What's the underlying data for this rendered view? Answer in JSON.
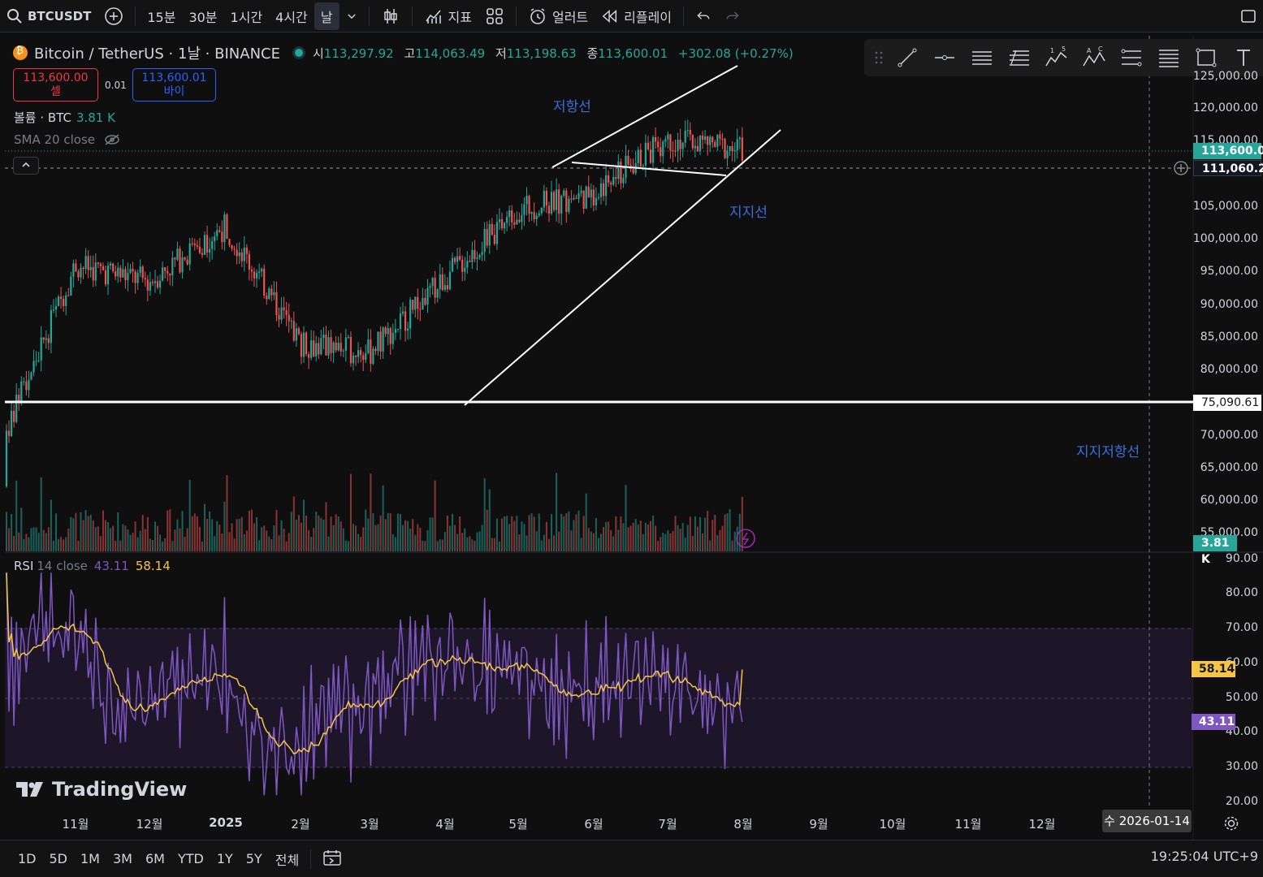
{
  "toolbar": {
    "symbol": "BTCUSDT",
    "intervals": [
      "15분",
      "30분",
      "1시간",
      "4시간",
      "날"
    ],
    "active_interval": "날",
    "indicators_label": "지표",
    "alert_label": "얼러트",
    "replay_label": "리플레이"
  },
  "legend": {
    "title": "Bitcoin / TetherUS · 1날 · BINANCE",
    "open_label": "시",
    "open": "113,297.92",
    "high_label": "고",
    "high": "114,063.49",
    "low_label": "저",
    "low": "113,198.63",
    "close_label": "종",
    "close": "113,600.01",
    "change": "+302.08 (+0.27%)"
  },
  "trade": {
    "sell_price": "113,600.00",
    "sell_label": "셀",
    "spread": "0.01",
    "buy_price": "113,600.01",
    "buy_label": "바이"
  },
  "volume_legend": {
    "label": "볼륨 · BTC",
    "value": "3.81 K"
  },
  "sma_legend": {
    "label": "SMA 20 close"
  },
  "rsi_legend": {
    "name": "RSI",
    "args": "14 close",
    "value": "43.11",
    "ma_value": "58.14"
  },
  "annotations": {
    "resistance": "저항선",
    "support": "지지선",
    "support_resistance": "지지저항선"
  },
  "price_axis": {
    "labels": [
      "125,000.00",
      "120,000.00",
      "115,000.00",
      "105,000.00",
      "100,000.00",
      "95,000.00",
      "90,000.00",
      "85,000.00",
      "80,000.00",
      "70,000.00",
      "65,000.00",
      "60,000.00",
      "55,000.00"
    ],
    "last_price": "113,600.01",
    "crosshair_price": "111,060.21",
    "hline_price": "75,090.61",
    "volume_tag": "3.81 K"
  },
  "rsi_axis": {
    "labels": [
      "90.00",
      "80.00",
      "70.00",
      "60.00",
      "50.00",
      "40.00",
      "30.00",
      "20.00"
    ],
    "rsi_tag": "43.11",
    "ma_tag": "58.14"
  },
  "time_axis": {
    "labels": [
      "11월",
      "12월",
      "2025",
      "2월",
      "3월",
      "4월",
      "5월",
      "6월",
      "7월",
      "8월",
      "9월",
      "10월",
      "11월",
      "12월"
    ],
    "cursor_date": "수 2026-01-14"
  },
  "bottom": {
    "ranges": [
      "1D",
      "5D",
      "1M",
      "3M",
      "6M",
      "YTD",
      "1Y",
      "5Y",
      "전체"
    ],
    "clock": "19:25:04 UTC+9"
  },
  "brand": "TradingView",
  "colors": {
    "up": "#26a69a",
    "down": "#ef5350",
    "rsi": "#7e57c2",
    "rsi_ma": "#f7c546",
    "annotation": "#3e6ddb",
    "background": "#0f0f0f"
  },
  "chart_data": {
    "type": "candlestick",
    "symbol": "BTCUSDT",
    "interval": "1D",
    "price_range": [
      50000,
      125000
    ],
    "approx_monthly_close": {
      "x": [
        "2024-10",
        "2024-11",
        "2024-12",
        "2025-01",
        "2025-02",
        "2025-03",
        "2025-04",
        "2025-05",
        "2025-06",
        "2025-07",
        "2025-08"
      ],
      "close": [
        70000,
        96000,
        93500,
        102000,
        84000,
        82500,
        94000,
        104500,
        107000,
        115500,
        113600
      ]
    },
    "last": {
      "open": 113297.92,
      "high": 114063.49,
      "low": 113198.63,
      "close": 113600.01,
      "change": 302.08,
      "change_pct": 0.27
    },
    "horizontal_level": 75090.61,
    "rsi": {
      "period": 14,
      "value": 43.11,
      "ma": 58.14,
      "range": [
        20,
        90
      ],
      "bands": [
        30,
        70
      ]
    }
  }
}
